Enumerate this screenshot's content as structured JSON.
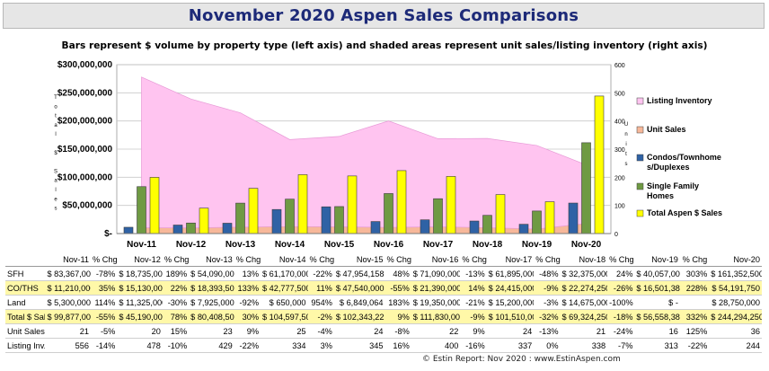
{
  "title": "November 2020 Aspen Sales Comparisons",
  "chart_data": {
    "type": "bar",
    "subtitle": "Bars represent $ volume by property type (left axis) and shaded areas represent unit sales/listing inventory (right axis)",
    "categories": [
      "Nov-11",
      "Nov-12",
      "Nov-13",
      "Nov-14",
      "Nov-15",
      "Nov-16",
      "Nov-17",
      "Nov-18",
      "Nov-19",
      "Nov-20"
    ],
    "left_axis": {
      "label": "Total $ Sales",
      "range": [
        0,
        300000000
      ],
      "ticks": [
        "$-",
        "$50,000,000",
        "$100,000,000",
        "$150,000,000",
        "$200,000,000",
        "$250,000,000",
        "$300,000,000"
      ]
    },
    "right_axis": {
      "label": "Units",
      "range": [
        0,
        600
      ],
      "ticks": [
        "0",
        "100",
        "200",
        "300",
        "400",
        "500",
        "600"
      ]
    },
    "bar_series": [
      {
        "name": "Condos/Townhomes/Duplexes",
        "color": "#2f62a5",
        "values": [
          11210000,
          15130000,
          18393500,
          42777500,
          47540000,
          21390000,
          24415000,
          22274250,
          16501389,
          54191750
        ]
      },
      {
        "name": "Single Family Homes",
        "color": "#6f9a43",
        "values": [
          83367000,
          18735000,
          54090000,
          61170000,
          47954158,
          71090000,
          61895000,
          32375000,
          40057000,
          161352500
        ]
      },
      {
        "name": "Total Aspen $ Sales",
        "color": "#ffff00",
        "values": [
          99877000,
          45190000,
          80408500,
          104597500,
          102343222,
          111830000,
          101510000,
          69324250,
          56558389,
          244294250
        ]
      }
    ],
    "area_series": [
      {
        "name": "Listing Inventory",
        "color": "#ffc4f0",
        "values": [
          556,
          478,
          429,
          334,
          345,
          400,
          337,
          338,
          313,
          244
        ]
      },
      {
        "name": "Unit Sales",
        "color": "#f7b89a",
        "values": [
          21,
          20,
          23,
          25,
          24,
          22,
          24,
          21,
          16,
          36
        ]
      }
    ],
    "legend_position": "right",
    "legend": [
      "Listing Inventory",
      "Unit Sales",
      "Condos/Townhomes/Duplexes",
      "Single Family Homes",
      "Total Aspen $ Sales"
    ],
    "grid": true
  },
  "table": {
    "headers": [
      "",
      "Nov-11",
      "% Chg",
      "Nov-12",
      "% Chg",
      "Nov-13",
      "% Chg",
      "Nov-14",
      "% Chg",
      "Nov-15",
      "% Chg",
      "Nov-16",
      "% Chg",
      "Nov-17",
      "% Chg",
      "Nov-18",
      "% Chg",
      "Nov-19",
      "% Chg",
      "Nov-20"
    ],
    "rows": [
      {
        "label": "SFH",
        "style": "plain",
        "cells": [
          "$ 83,367,000",
          "-78%",
          "$ 18,735,000",
          "189%",
          "$ 54,090,000",
          "13%",
          "$ 61,170,000",
          "-22%",
          "$ 47,954,158",
          "48%",
          "$ 71,090,000",
          "-13%",
          "$ 61,895,000",
          "-48%",
          "$ 32,375,000",
          "24%",
          "$ 40,057,000",
          "303%",
          "$ 161,352,500"
        ]
      },
      {
        "label": "CO/THS",
        "style": "yellow",
        "cells": [
          "$ 11,210,000",
          "35%",
          "$ 15,130,000",
          "22%",
          "$ 18,393,500",
          "133%",
          "$ 42,777,500",
          "11%",
          "$ 47,540,000",
          "-55%",
          "$ 21,390,000",
          "14%",
          "$ 24,415,000",
          "-9%",
          "$ 22,274,250",
          "-26%",
          "$ 16,501,389",
          "228%",
          "$ 54,191,750"
        ]
      },
      {
        "label": "Land",
        "style": "plain",
        "cells": [
          "$ 5,300,000",
          "114%",
          "$ 11,325,000",
          "-30%",
          "$ 7,925,000",
          "-92%",
          "$ 650,000",
          "954%",
          "$ 6,849,064",
          "183%",
          "$ 19,350,000",
          "-21%",
          "$ 15,200,000",
          "-3%",
          "$ 14,675,000",
          "-100%",
          "$ -",
          "",
          "$ 28,750,000"
        ]
      },
      {
        "label": "Total $ Sales",
        "style": "yellow",
        "cells": [
          "$ 99,877,000",
          "-55%",
          "$ 45,190,000",
          "78%",
          "$ 80,408,500",
          "30%",
          "$ 104,597,500",
          "-2%",
          "$ 102,343,222",
          "9%",
          "$ 111,830,000",
          "-9%",
          "$ 101,510,000",
          "-32%",
          "$ 69,324,250",
          "-18%",
          "$ 56,558,389",
          "332%",
          "$ 244,294,250"
        ]
      },
      {
        "label": "Unit Sales",
        "style": "plain",
        "cells": [
          "21",
          "-5%",
          "20",
          "15%",
          "23",
          "9%",
          "25",
          "-4%",
          "24",
          "-8%",
          "22",
          "9%",
          "24",
          "-13%",
          "21",
          "-24%",
          "16",
          "125%",
          "36"
        ]
      },
      {
        "label": "Listing Inv.",
        "style": "plain",
        "cells": [
          "556",
          "-14%",
          "478",
          "-10%",
          "429",
          "-22%",
          "334",
          "3%",
          "345",
          "16%",
          "400",
          "-16%",
          "337",
          "0%",
          "338",
          "-7%",
          "313",
          "-22%",
          "244"
        ]
      }
    ]
  },
  "footer": "© Estin Report: Nov 2020 : www.EstinAspen.com"
}
